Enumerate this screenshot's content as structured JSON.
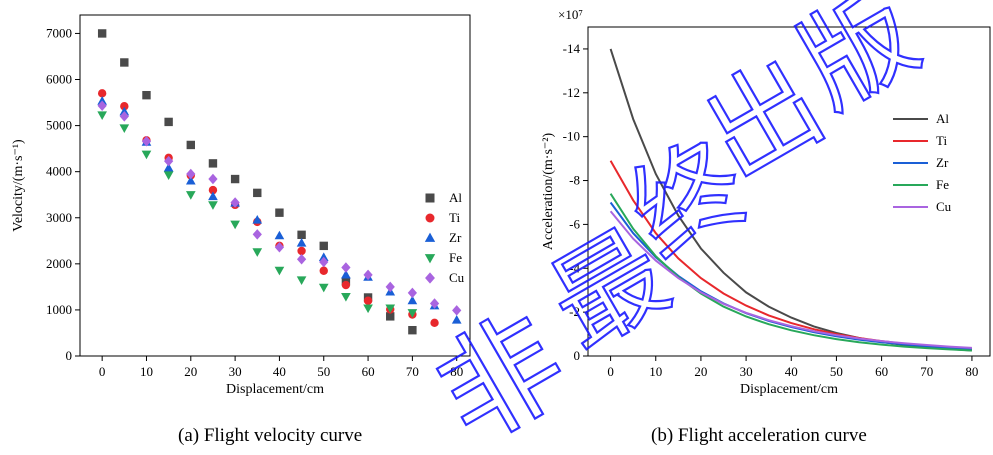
{
  "captions": {
    "a": "(a) Flight velocity curve",
    "b": "(b) Flight acceleration curve"
  },
  "watermark": {
    "text": "非最终出版",
    "color": "#1a1aff"
  },
  "chart_data": [
    {
      "type": "scatter",
      "xlabel": "Displacement/cm",
      "ylabel": "Velocity/(m·s⁻¹)",
      "xlim": [
        -5,
        83
      ],
      "ylim": [
        0,
        7400
      ],
      "xticks": [
        0,
        10,
        20,
        30,
        40,
        50,
        60,
        70,
        80
      ],
      "yticks": [
        0,
        1000,
        2000,
        3000,
        4000,
        5000,
        6000,
        7000
      ],
      "legend_position": "right",
      "x": [
        0,
        5,
        10,
        15,
        20,
        25,
        30,
        35,
        40,
        45,
        50,
        55,
        60,
        65,
        70,
        75,
        80
      ],
      "series": [
        {
          "name": "Al",
          "marker": "square",
          "color": "#4a4a4a",
          "values": [
            7000,
            6370,
            5660,
            5080,
            4580,
            4180,
            3840,
            3540,
            3110,
            2630,
            2390,
            1620,
            1270,
            860,
            560,
            null,
            null
          ]
        },
        {
          "name": "Ti",
          "marker": "circle",
          "color": "#e8282c",
          "values": [
            5700,
            5420,
            4680,
            4300,
            3920,
            3600,
            3280,
            2910,
            2390,
            2280,
            1850,
            1540,
            1200,
            1010,
            900,
            720,
            null
          ]
        },
        {
          "name": "Zr",
          "marker": "triangle-up",
          "color": "#1a5fd6",
          "values": [
            5530,
            5300,
            4640,
            4080,
            3800,
            3460,
            3320,
            2950,
            2610,
            2450,
            2140,
            1760,
            1710,
            1390,
            1200,
            1090,
            780
          ]
        },
        {
          "name": "Fe",
          "marker": "triangle-down",
          "color": "#28a85a",
          "values": [
            5230,
            4950,
            4380,
            3930,
            3500,
            3280,
            2860,
            2260,
            1860,
            1650,
            1490,
            1290,
            1040,
            1040,
            940,
            null,
            null
          ]
        },
        {
          "name": "Cu",
          "marker": "diamond",
          "color": "#a964e0",
          "values": [
            5430,
            5200,
            4660,
            4230,
            3950,
            3840,
            3330,
            2640,
            2360,
            2100,
            2040,
            1920,
            1760,
            1500,
            1370,
            1140,
            990
          ]
        }
      ]
    },
    {
      "type": "line",
      "xlabel": "Displacement/cm",
      "ylabel": "Acceleration/(m·s⁻²)",
      "y_multiplier": "×10⁷",
      "y_reversed": true,
      "xlim": [
        -5,
        84
      ],
      "ylim": [
        0.0,
        -15.0
      ],
      "xticks": [
        0,
        10,
        20,
        30,
        40,
        50,
        60,
        70,
        80
      ],
      "yticks": [
        0,
        -2,
        -4,
        -6,
        -8,
        -10,
        -12,
        -14
      ],
      "legend_position": "right",
      "x": [
        0,
        5,
        10,
        15,
        20,
        25,
        30,
        35,
        40,
        45,
        50,
        55,
        60,
        65,
        70,
        75,
        80
      ],
      "series": [
        {
          "name": "Al",
          "color": "#4a4a4a",
          "values": [
            -14.0,
            -10.8,
            -8.3,
            -6.4,
            -4.9,
            -3.8,
            -2.9,
            -2.25,
            -1.75,
            -1.35,
            -1.05,
            -0.82,
            -0.64,
            -0.5,
            -0.4,
            -0.32,
            -0.25
          ]
        },
        {
          "name": "Ti",
          "color": "#e8282c",
          "values": [
            -8.9,
            -7.1,
            -5.6,
            -4.45,
            -3.55,
            -2.85,
            -2.3,
            -1.85,
            -1.5,
            -1.22,
            -1.0,
            -0.82,
            -0.68,
            -0.56,
            -0.47,
            -0.39,
            -0.33
          ]
        },
        {
          "name": "Zr",
          "color": "#1a5fd6",
          "values": [
            -7.0,
            -5.6,
            -4.5,
            -3.65,
            -2.95,
            -2.4,
            -1.95,
            -1.6,
            -1.32,
            -1.09,
            -0.9,
            -0.75,
            -0.63,
            -0.53,
            -0.45,
            -0.38,
            -0.32
          ]
        },
        {
          "name": "Fe",
          "color": "#28a85a",
          "values": [
            -7.4,
            -5.8,
            -4.55,
            -3.6,
            -2.85,
            -2.25,
            -1.8,
            -1.45,
            -1.17,
            -0.95,
            -0.77,
            -0.63,
            -0.52,
            -0.43,
            -0.36,
            -0.3,
            -0.25
          ]
        },
        {
          "name": "Cu",
          "color": "#a964e0",
          "values": [
            -6.6,
            -5.35,
            -4.35,
            -3.55,
            -2.9,
            -2.38,
            -1.97,
            -1.63,
            -1.36,
            -1.13,
            -0.95,
            -0.8,
            -0.68,
            -0.58,
            -0.5,
            -0.43,
            -0.37
          ]
        }
      ]
    }
  ]
}
